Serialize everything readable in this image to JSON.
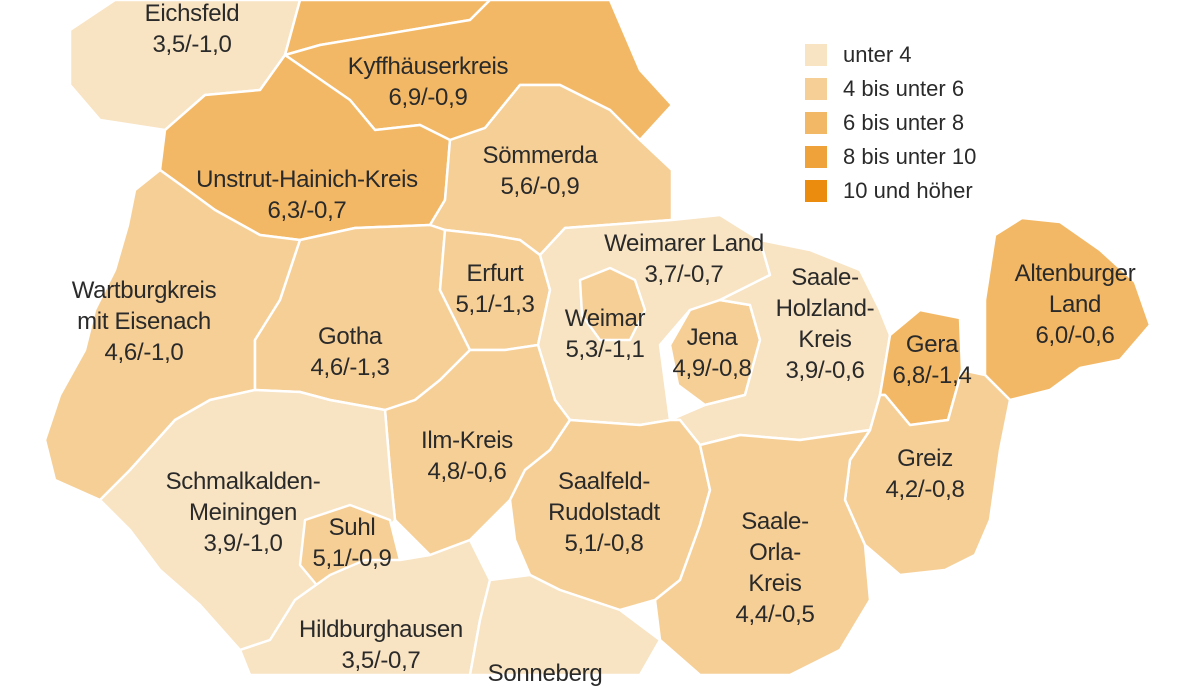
{
  "legend": [
    {
      "label": "unter 4",
      "color": "#f8e3c2"
    },
    {
      "label": "4 bis unter 6",
      "color": "#f6cf96"
    },
    {
      "label": "6 bis unter 8",
      "color": "#f3b865"
    },
    {
      "label": "8 bis unter 10",
      "color": "#f0a23a"
    },
    {
      "label": "10 und höher",
      "color": "#ec8c0e"
    }
  ],
  "regions": {
    "eichsfeld": {
      "name": "Eichsfeld",
      "value": "3,5/-1,0",
      "color": "#f8e3c2"
    },
    "nordhausen": {
      "color": "#f3b865"
    },
    "kyffhaeuser": {
      "name": "Kyffhäuserkreis",
      "value": "6,9/-0,9",
      "color": "#f3b865"
    },
    "unstrut": {
      "name": "Unstrut-Hainich-Kreis",
      "value": "6,3/-0,7",
      "color": "#f3b865"
    },
    "soemmerda": {
      "name": "Sömmerda",
      "value": "5,6/-0,9",
      "color": "#f6cf96"
    },
    "wartburg": {
      "name1": "Wartburgkreis",
      "name2": "mit Eisenach",
      "value": "4,6/-1,0",
      "color": "#f6cf96"
    },
    "gotha": {
      "name": "Gotha",
      "value": "4,6/-1,3",
      "color": "#f6cf96"
    },
    "erfurt": {
      "name": "Erfurt",
      "value": "5,1/-1,3",
      "color": "#f6cf96"
    },
    "weimarer_land": {
      "name": "Weimarer Land",
      "value": "3,7/-0,7",
      "color": "#f8e3c2"
    },
    "weimar": {
      "name": "Weimar",
      "value": "5,3/-1,1",
      "color": "#f6cf96"
    },
    "jena": {
      "name": "Jena",
      "value": "4,9/-0,8",
      "color": "#f6cf96"
    },
    "saale_holzland": {
      "name1": "Saale-",
      "name2": "Holzland-",
      "name3": "Kreis",
      "value": "3,9/-0,6",
      "color": "#f8e3c2"
    },
    "gera": {
      "name": "Gera",
      "value": "6,8/-1,4",
      "color": "#f3b865"
    },
    "altenburger": {
      "name1": "Altenburger",
      "name2": "Land",
      "value": "6,0/-0,6",
      "color": "#f3b865"
    },
    "greiz": {
      "name": "Greiz",
      "value": "4,2/-0,8",
      "color": "#f6cf96"
    },
    "ilm": {
      "name": "Ilm-Kreis",
      "value": "4,8/-0,6",
      "color": "#f6cf96"
    },
    "schmalkalden": {
      "name1": "Schmalkalden-",
      "name2": "Meiningen",
      "value": "3,9/-1,0",
      "color": "#f8e3c2"
    },
    "suhl": {
      "name": "Suhl",
      "value": "5,1/-0,9",
      "color": "#f6cf96"
    },
    "saalfeld": {
      "name1": "Saalfeld-",
      "name2": "Rudolstadt",
      "value": "5,1/-0,8",
      "color": "#f6cf96"
    },
    "saale_orla": {
      "name1": "Saale-",
      "name2": "Orla-",
      "name3": "Kreis",
      "value": "4,4/-0,5",
      "color": "#f6cf96"
    },
    "hildburghausen": {
      "name": "Hildburghausen",
      "value": "3,5/-0,7",
      "color": "#f8e3c2"
    },
    "sonneberg": {
      "name": "Sonneberg",
      "color": "#f8e3c2"
    }
  }
}
